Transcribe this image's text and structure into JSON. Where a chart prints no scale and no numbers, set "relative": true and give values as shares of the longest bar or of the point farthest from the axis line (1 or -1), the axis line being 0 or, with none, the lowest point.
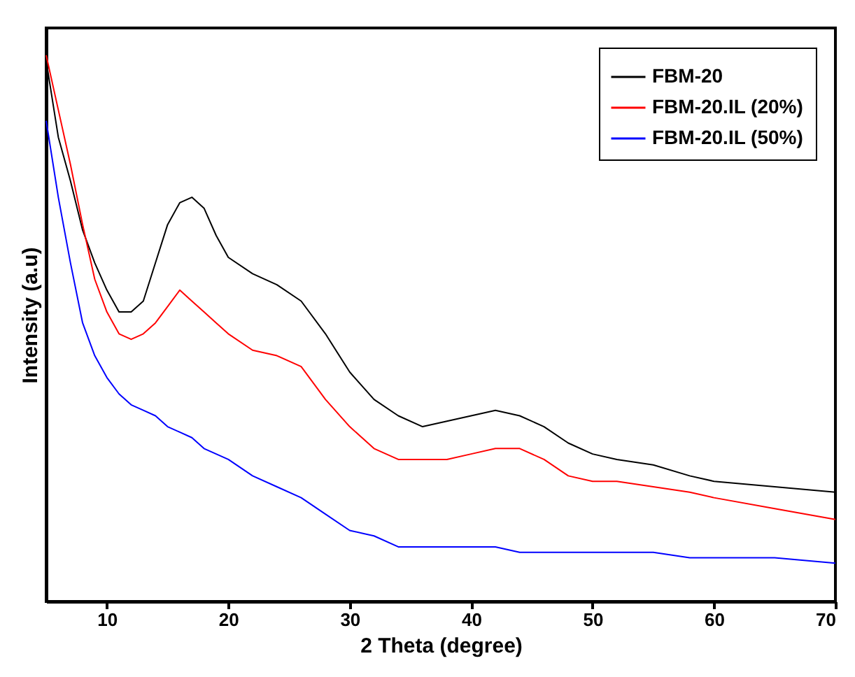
{
  "chart_data": {
    "type": "line",
    "relative": true,
    "xlabel": "2 Theta (degree)",
    "ylabel": "Intensity (a.u)",
    "xlim": [
      5,
      70
    ],
    "xticks": [
      10,
      20,
      30,
      40,
      50,
      60,
      70
    ],
    "legend": "top right",
    "x": [
      5,
      6,
      7,
      8,
      9,
      10,
      11,
      12,
      13,
      14,
      15,
      16,
      17,
      18,
      19,
      20,
      22,
      24,
      26,
      28,
      30,
      32,
      34,
      36,
      38,
      40,
      42,
      44,
      46,
      48,
      50,
      52,
      55,
      58,
      60,
      65,
      70
    ],
    "series": [
      {
        "name": "FBM-20",
        "color": "#000000",
        "values": [
          0.99,
          0.85,
          0.77,
          0.68,
          0.62,
          0.57,
          0.53,
          0.53,
          0.55,
          0.62,
          0.69,
          0.73,
          0.74,
          0.72,
          0.67,
          0.63,
          0.6,
          0.58,
          0.55,
          0.49,
          0.42,
          0.37,
          0.34,
          0.32,
          0.33,
          0.34,
          0.35,
          0.34,
          0.32,
          0.29,
          0.27,
          0.26,
          0.25,
          0.23,
          0.22,
          0.21,
          0.2
        ]
      },
      {
        "name": "FBM-20.IL (20%)",
        "color": "#ff0000",
        "values": [
          1.0,
          0.9,
          0.8,
          0.69,
          0.59,
          0.53,
          0.49,
          0.48,
          0.49,
          0.51,
          0.54,
          0.57,
          0.55,
          0.53,
          0.51,
          0.49,
          0.46,
          0.45,
          0.43,
          0.37,
          0.32,
          0.28,
          0.26,
          0.26,
          0.26,
          0.27,
          0.28,
          0.28,
          0.26,
          0.23,
          0.22,
          0.22,
          0.21,
          0.2,
          0.19,
          0.17,
          0.15
        ]
      },
      {
        "name": "FBM-20.IL (50%)",
        "color": "#0000ff",
        "values": [
          0.88,
          0.74,
          0.62,
          0.51,
          0.45,
          0.41,
          0.38,
          0.36,
          0.35,
          0.34,
          0.32,
          0.31,
          0.3,
          0.28,
          0.27,
          0.26,
          0.23,
          0.21,
          0.19,
          0.16,
          0.13,
          0.12,
          0.1,
          0.1,
          0.1,
          0.1,
          0.1,
          0.09,
          0.09,
          0.09,
          0.09,
          0.09,
          0.09,
          0.08,
          0.08,
          0.08,
          0.07
        ]
      }
    ]
  }
}
